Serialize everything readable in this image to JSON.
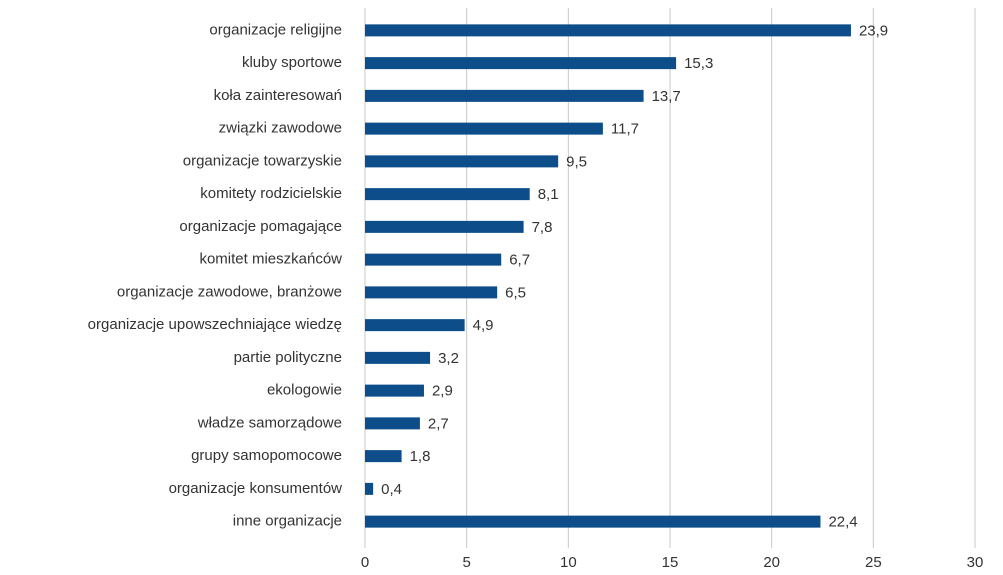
{
  "chart_data": {
    "type": "bar",
    "orientation": "horizontal",
    "categories": [
      "organizacje religijne",
      "kluby sportowe",
      "koła zainteresowań",
      "związki zawodowe",
      "organizacje towarzyskie",
      "komitety rodzicielskie",
      "organizacje pomagające",
      "komitet mieszkańców",
      "organizacje zawodowe, branżowe",
      "organizacje upowszechniające wiedzę",
      "partie polityczne",
      "ekologowie",
      "władze samorządowe",
      "grupy samopomocowe",
      "organizacje konsumentów",
      "inne organizacje"
    ],
    "values": [
      23.9,
      15.3,
      13.7,
      11.7,
      9.5,
      8.1,
      7.8,
      6.7,
      6.5,
      4.9,
      3.2,
      2.9,
      2.7,
      1.8,
      0.4,
      22.4
    ],
    "value_labels": [
      "23,9",
      "15,3",
      "13,7",
      "11,7",
      "9,5",
      "8,1",
      "7,8",
      "6,7",
      "6,5",
      "4,9",
      "3,2",
      "2,9",
      "2,7",
      "1,8",
      "0,4",
      "22,4"
    ],
    "color": "#0d4e8a",
    "xlim": [
      0,
      30
    ],
    "xticks": [
      0,
      5,
      10,
      15,
      20,
      25,
      30
    ],
    "grid": true
  }
}
